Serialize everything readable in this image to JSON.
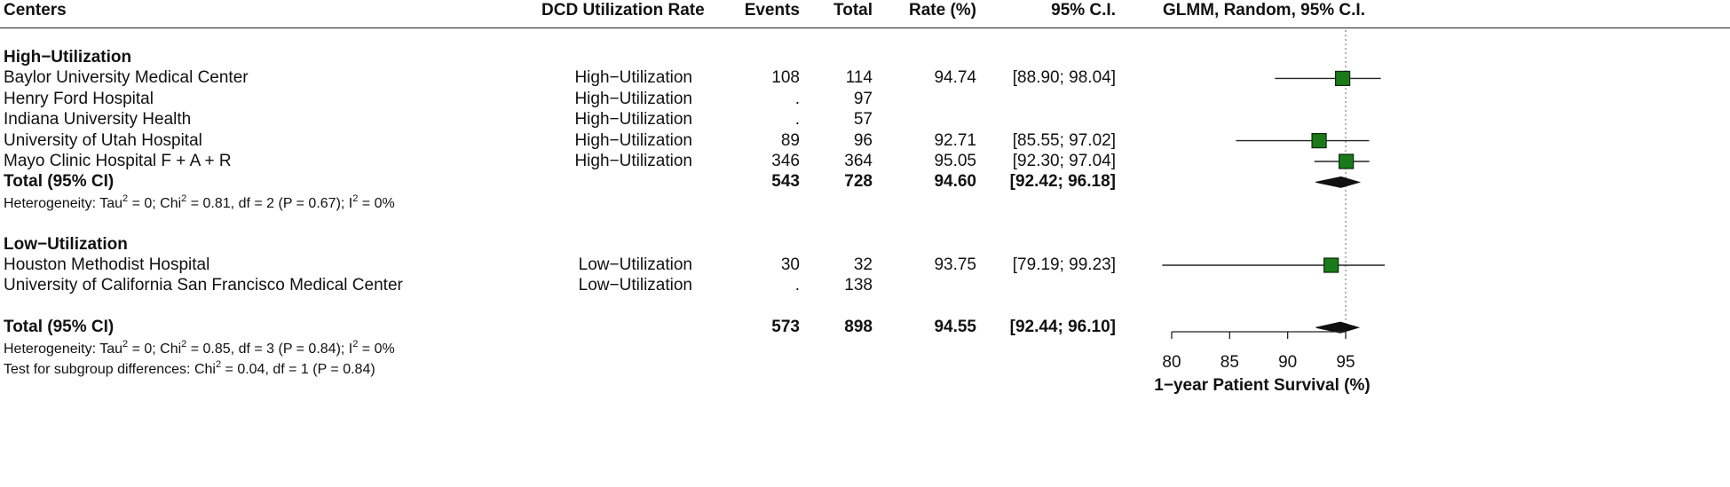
{
  "headers": {
    "centers": "Centers",
    "rate_group": "DCD Utilization Rate",
    "events": "Events",
    "total": "Total",
    "rate": "Rate (%)",
    "ci": "95% C.I.",
    "plot": "GLMM, Random, 95% C.I."
  },
  "rows": [
    {
      "kind": "group",
      "label": "High−Utilization"
    },
    {
      "kind": "study",
      "center": "Baylor University Medical Center",
      "group": "High−Utilization",
      "events": "108",
      "total": "114",
      "rate": "94.74",
      "ci": "[88.90; 98.04]"
    },
    {
      "kind": "study",
      "center": "Henry Ford Hospital",
      "group": "High−Utilization",
      "events": ".",
      "total": "97",
      "rate": "",
      "ci": ""
    },
    {
      "kind": "study",
      "center": "Indiana University Health",
      "group": "High−Utilization",
      "events": ".",
      "total": "57",
      "rate": "",
      "ci": ""
    },
    {
      "kind": "study",
      "center": "University of Utah Hospital",
      "group": "High−Utilization",
      "events": "89",
      "total": "96",
      "rate": "92.71",
      "ci": "[85.55; 97.02]"
    },
    {
      "kind": "study",
      "center": "Mayo Clinic Hospital F + A + R",
      "group": "High−Utilization",
      "events": "346",
      "total": "364",
      "rate": "95.05",
      "ci": "[92.30; 97.04]"
    },
    {
      "kind": "total",
      "center": "Total (95% CI)",
      "events": "543",
      "total": "728",
      "rate": "94.60",
      "ci": "[92.42; 96.18]"
    },
    {
      "kind": "het",
      "html": "Heterogeneity: Tau<sup>2</sup> = 0; Chi<sup>2</sup> = 0.81, df = 2 (P = 0.67); I<sup>2</sup> = 0%"
    },
    {
      "kind": "blank"
    },
    {
      "kind": "group",
      "label": "Low−Utilization"
    },
    {
      "kind": "study",
      "center": "Houston Methodist Hospital",
      "group": "Low−Utilization",
      "events": "30",
      "total": "32",
      "rate": "93.75",
      "ci": "[79.19; 99.23]"
    },
    {
      "kind": "study",
      "center": "University of California San Francisco Medical Center",
      "group": "Low−Utilization",
      "events": ".",
      "total": "138",
      "rate": "",
      "ci": ""
    },
    {
      "kind": "blank"
    },
    {
      "kind": "total",
      "center": "Total (95% CI)",
      "events": "573",
      "total": "898",
      "rate": "94.55",
      "ci": "[92.44; 96.10]"
    },
    {
      "kind": "het",
      "html": "Heterogeneity: Tau<sup>2</sup> = 0; Chi<sup>2</sup> = 0.85, df = 3 (P = 0.84); I<sup>2</sup> = 0%"
    },
    {
      "kind": "het",
      "html": "Test for subgroup differences: Chi<sup>2</sup> = 0.04, df = 1 (P = 0.84)"
    }
  ],
  "chart_data": {
    "type": "forest",
    "xlabel": "1−year Patient Survival (%)",
    "xlim": [
      80,
      100
    ],
    "ticks": [
      80,
      85,
      90,
      95
    ],
    "reference_line": 95,
    "studies": [
      {
        "center": "Baylor University Medical Center",
        "estimate": 94.74,
        "lower": 88.9,
        "upper": 98.04
      },
      {
        "center": "University of Utah Hospital",
        "estimate": 92.71,
        "lower": 85.55,
        "upper": 97.02
      },
      {
        "center": "Mayo Clinic Hospital F + A + R",
        "estimate": 95.05,
        "lower": 92.3,
        "upper": 97.04
      },
      {
        "center": "Houston Methodist Hospital",
        "estimate": 93.75,
        "lower": 79.19,
        "upper": 99.23
      }
    ],
    "pooled": [
      {
        "label": "High−Utilization total",
        "estimate": 94.6,
        "lower": 92.42,
        "upper": 96.18
      },
      {
        "label": "Overall total",
        "estimate": 94.55,
        "lower": 92.44,
        "upper": 96.1
      }
    ],
    "colors": {
      "square": "#1a7a1a",
      "square_border": "#0a2a0a",
      "diamond": "#111111",
      "ref_line": "#888888"
    }
  }
}
